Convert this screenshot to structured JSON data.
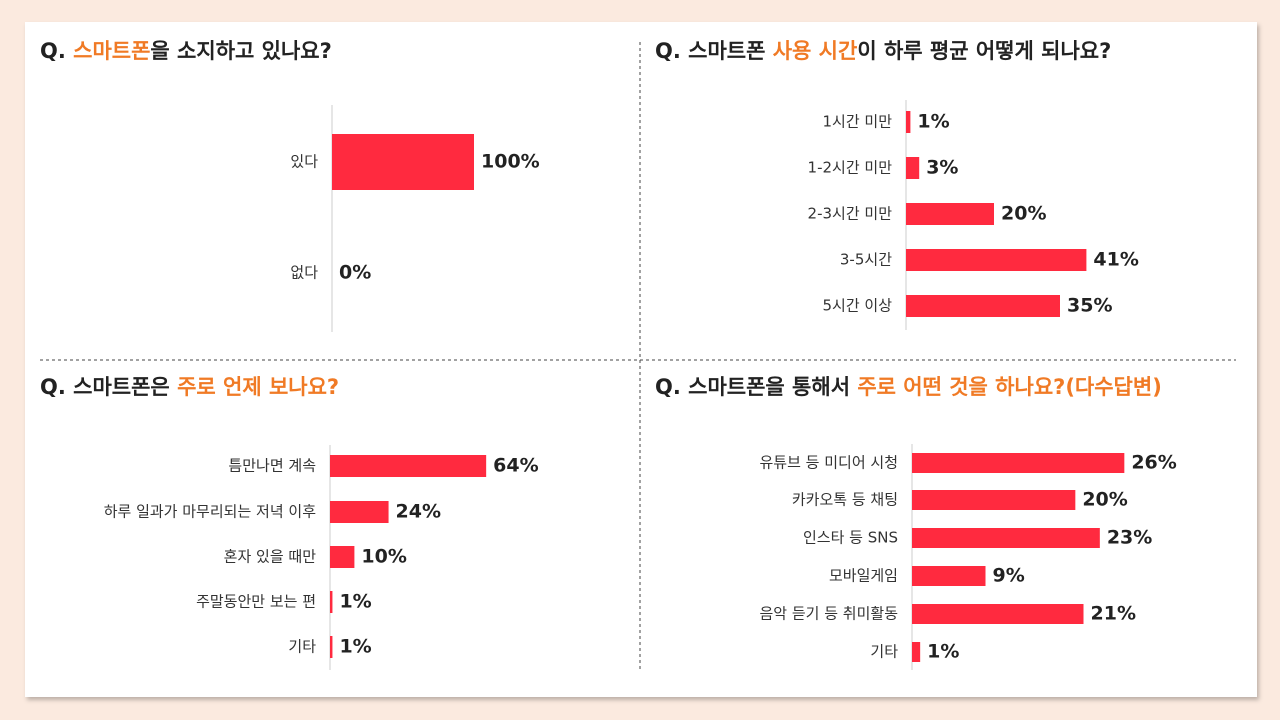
{
  "chart_data": [
    {
      "type": "bar",
      "orientation": "horizontal",
      "color": "#ff2a3f",
      "title": [
        {
          "text": "Q. ",
          "color": "#222222"
        },
        {
          "text": "스마트폰",
          "color": "#f07a25"
        },
        {
          "text": "을 소지하고 있나요?",
          "color": "#222222"
        }
      ],
      "categories": [
        "있다",
        "없다"
      ],
      "values": [
        100,
        0
      ],
      "value_labels": [
        "100%",
        "0%"
      ],
      "xlim": [
        0,
        100
      ]
    },
    {
      "type": "bar",
      "orientation": "horizontal",
      "color": "#ff2a3f",
      "title": [
        {
          "text": "Q. 스마트폰 ",
          "color": "#222222"
        },
        {
          "text": "사용 시간",
          "color": "#f07a25"
        },
        {
          "text": "이 하루 평균 어떻게 되나요?",
          "color": "#222222"
        }
      ],
      "categories": [
        "1시간 미만",
        "1-2시간 미만",
        "2-3시간 미만",
        "3-5시간",
        "5시간 이상"
      ],
      "values": [
        1,
        3,
        20,
        41,
        35
      ],
      "value_labels": [
        "1%",
        "3%",
        "20%",
        "41%",
        "35%"
      ],
      "xlim": [
        0,
        50
      ]
    },
    {
      "type": "bar",
      "orientation": "horizontal",
      "color": "#ff2a3f",
      "title": [
        {
          "text": "Q. 스마트폰은 ",
          "color": "#222222"
        },
        {
          "text": "주로 언제 보나요?",
          "color": "#f07a25"
        }
      ],
      "categories": [
        "틈만나면 계속",
        "하루 일과가 마무리되는 저녁 이후",
        "혼자 있을 때만",
        "주말동안만 보는 편",
        "기타"
      ],
      "values": [
        64,
        24,
        10,
        1,
        1
      ],
      "value_labels": [
        "64%",
        "24%",
        "10%",
        "1%",
        "1%"
      ],
      "xlim": [
        0,
        100
      ]
    },
    {
      "type": "bar",
      "orientation": "horizontal",
      "color": "#ff2a3f",
      "title": [
        {
          "text": "Q. 스마트폰을 통해서 ",
          "color": "#222222"
        },
        {
          "text": "주로 어떤 것을 하나요?(다수답변)",
          "color": "#f07a25"
        }
      ],
      "categories": [
        "유튜브 등 미디어 시청",
        "카카오톡 등 채팅",
        "인스타 등 SNS",
        "모바일게임",
        "음악 듣기 등 취미활동",
        "기타"
      ],
      "values": [
        26,
        20,
        23,
        9,
        21,
        1
      ],
      "value_labels": [
        "26%",
        "20%",
        "23%",
        "9%",
        "21%",
        "1%"
      ],
      "xlim": [
        0,
        30
      ]
    }
  ]
}
